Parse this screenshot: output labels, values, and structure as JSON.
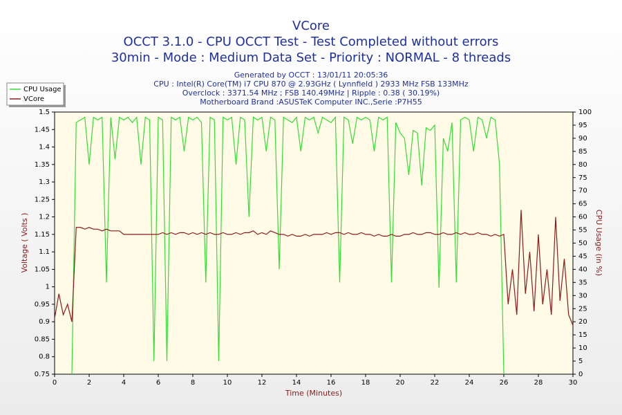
{
  "chart_data": {
    "type": "line",
    "title": "VCore",
    "subtitle": "OCCT 3.1.0 - CPU OCCT Test - Test Completed without errors",
    "subtitle2": "30min - Mode : Medium Data Set - Priority : NORMAL - 8 threads",
    "info": [
      "Generated by OCCT : 13/01/11 20:05:36",
      "CPU : Intel(R) Core(TM) i7 CPU 870 @ 2.93GHz ( Lynnfield ) 2933 MHz FSB 133MHz",
      "Overclock : 3371.54 MHz ; FSB 140.49MHz | Ripple : 0.38 ( 30.19%)",
      "Motherboard Brand :ASUSTeK Computer INC.,Serie :P7H55"
    ],
    "xlabel": "Time (Minutes)",
    "ylabel": "Voltage ( Volts )",
    "y2label": "CPU Usage (in %)",
    "legend": "upper left",
    "grid": false,
    "xlim": [
      0,
      30
    ],
    "xticks": [
      0,
      2,
      4,
      6,
      8,
      10,
      12,
      14,
      16,
      18,
      20,
      22,
      24,
      26,
      28,
      30
    ],
    "ylim": [
      0.75,
      1.5
    ],
    "yticks": [
      0.75,
      0.8,
      0.85,
      0.9,
      0.95,
      1,
      1.05,
      1.1,
      1.15,
      1.2,
      1.25,
      1.3,
      1.35,
      1.4,
      1.45,
      1.5
    ],
    "y2lim": [
      0,
      100
    ],
    "y2ticks": [
      0,
      5,
      10,
      15,
      20,
      25,
      30,
      35,
      40,
      45,
      50,
      55,
      60,
      65,
      70,
      75,
      80,
      85,
      90,
      95,
      100
    ],
    "x": [
      0,
      0.25,
      0.5,
      0.75,
      1,
      1.25,
      1.5,
      1.75,
      2,
      2.25,
      2.5,
      2.75,
      3,
      3.25,
      3.5,
      3.75,
      4,
      4.25,
      4.5,
      4.75,
      5,
      5.25,
      5.5,
      5.75,
      6,
      6.25,
      6.5,
      6.75,
      7,
      7.25,
      7.5,
      7.75,
      8,
      8.25,
      8.5,
      8.75,
      9,
      9.25,
      9.5,
      9.75,
      10,
      10.25,
      10.5,
      10.75,
      11,
      11.25,
      11.5,
      11.75,
      12,
      12.25,
      12.5,
      12.75,
      13,
      13.25,
      13.5,
      13.75,
      14,
      14.25,
      14.5,
      14.75,
      15,
      15.25,
      15.5,
      15.75,
      16,
      16.25,
      16.5,
      16.75,
      17,
      17.25,
      17.5,
      17.75,
      18,
      18.25,
      18.5,
      18.75,
      19,
      19.25,
      19.5,
      19.75,
      20,
      20.25,
      20.5,
      20.75,
      21,
      21.25,
      21.5,
      21.75,
      22,
      22.25,
      22.5,
      22.75,
      23,
      23.25,
      23.5,
      23.75,
      24,
      24.25,
      24.5,
      24.75,
      25,
      25.25,
      25.5,
      25.75,
      26,
      26.25,
      26.5,
      26.75,
      27,
      27.25,
      27.5,
      27.75,
      28,
      28.25,
      28.5,
      28.75,
      29,
      29.25,
      29.5,
      29.75,
      30
    ],
    "series": [
      {
        "name": "CPU Usage",
        "color": "#33dd33",
        "axis": "y2",
        "values": [
          null,
          null,
          null,
          null,
          0,
          96,
          97,
          98,
          80,
          98,
          97,
          98,
          35,
          98,
          82,
          98,
          97,
          98,
          96,
          98,
          80,
          98,
          97,
          5,
          98,
          97,
          5,
          98,
          97,
          98,
          85,
          98,
          97,
          98,
          96,
          35,
          98,
          97,
          5,
          98,
          97,
          98,
          80,
          98,
          97,
          60,
          98,
          97,
          98,
          85,
          98,
          97,
          40,
          98,
          97,
          96,
          98,
          85,
          98,
          97,
          98,
          92,
          98,
          97,
          96,
          98,
          35,
          98,
          97,
          88,
          98,
          97,
          98,
          97,
          85,
          98,
          97,
          98,
          35,
          96,
          92,
          90,
          76,
          93,
          92,
          72,
          94,
          93,
          95,
          33,
          90,
          85,
          96,
          35,
          97,
          98,
          97,
          85,
          98,
          97,
          90,
          98,
          97,
          80,
          0,
          null,
          null,
          null,
          null,
          null,
          null,
          null,
          null,
          null,
          null,
          null,
          null,
          null,
          null,
          null,
          null
        ]
      },
      {
        "name": "VCore",
        "color": "#8b1a1a",
        "values": [
          0.91,
          0.98,
          0.92,
          0.95,
          0.9,
          1.17,
          1.17,
          1.165,
          1.17,
          1.165,
          1.165,
          1.16,
          1.165,
          1.16,
          1.16,
          1.16,
          1.15,
          1.15,
          1.15,
          1.15,
          1.15,
          1.15,
          1.15,
          1.15,
          1.15,
          1.155,
          1.15,
          1.155,
          1.15,
          1.155,
          1.155,
          1.15,
          1.155,
          1.15,
          1.155,
          1.15,
          1.155,
          1.15,
          1.15,
          1.155,
          1.15,
          1.15,
          1.155,
          1.15,
          1.155,
          1.155,
          1.16,
          1.15,
          1.155,
          1.15,
          1.16,
          1.155,
          1.15,
          1.15,
          1.145,
          1.15,
          1.145,
          1.145,
          1.15,
          1.145,
          1.15,
          1.15,
          1.15,
          1.155,
          1.15,
          1.155,
          1.155,
          1.15,
          1.155,
          1.15,
          1.15,
          1.155,
          1.15,
          1.15,
          1.145,
          1.15,
          1.145,
          1.145,
          1.15,
          1.145,
          1.145,
          1.15,
          1.15,
          1.155,
          1.15,
          1.15,
          1.155,
          1.155,
          1.15,
          1.15,
          1.155,
          1.15,
          1.15,
          1.155,
          1.15,
          1.155,
          1.15,
          1.15,
          1.155,
          1.15,
          1.15,
          1.145,
          1.15,
          1.145,
          1.15,
          0.95,
          1.05,
          0.92,
          1.22,
          0.98,
          1.1,
          0.93,
          1.15,
          0.95,
          1.05,
          0.92,
          1.2,
          0.96,
          1.08,
          0.92,
          0.89
        ]
      }
    ]
  }
}
